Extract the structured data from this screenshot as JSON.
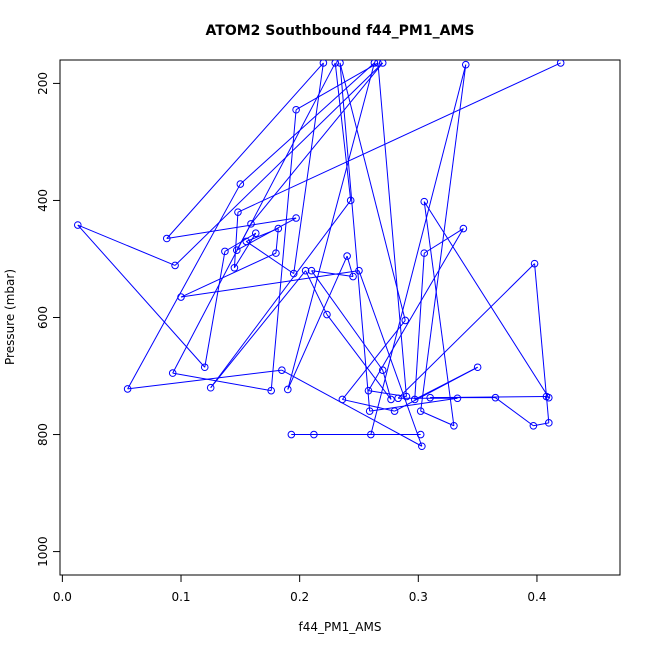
{
  "chart_data": {
    "type": "line",
    "title": "ATOM2 Southbound f44_PM1_AMS",
    "xlabel": "f44_PM1_AMS",
    "ylabel": "Pressure (mbar)",
    "xlim": [
      -0.002,
      0.47
    ],
    "ylim": [
      1040,
      160
    ],
    "y_inverted": true,
    "x_ticks": [
      0.0,
      0.1,
      0.2,
      0.3,
      0.4
    ],
    "x_tick_labels": [
      "0.0",
      "0.1",
      "0.2",
      "0.3",
      "0.4"
    ],
    "y_ticks": [
      200,
      400,
      600,
      800,
      1000
    ],
    "y_tick_labels": [
      "200",
      "400",
      "600",
      "800",
      "1000"
    ],
    "grid": false,
    "series_color": "#0000ff",
    "series": [
      {
        "style": "line-with-circles",
        "x": [
          0.42,
          0.148,
          0.145,
          0.163,
          0.137,
          0.12,
          0.013,
          0.095,
          0.27,
          0.159,
          0.147,
          0.197,
          0.088,
          0.22,
          0.195,
          0.155,
          0.182,
          0.18,
          0.1,
          0.25,
          0.303,
          0.185,
          0.055,
          0.15,
          0.263,
          0.19,
          0.24,
          0.245,
          0.21,
          0.27,
          0.277,
          0.223,
          0.205,
          0.125,
          0.243,
          0.23,
          0.093,
          0.176,
          0.197,
          0.266,
          0.29,
          0.258,
          0.338,
          0.305,
          0.297,
          0.35,
          0.28,
          0.236,
          0.289,
          0.234,
          0.259,
          0.333,
          0.283,
          0.398,
          0.41,
          0.397,
          0.365,
          0.31,
          0.408,
          0.41,
          0.305,
          0.33,
          0.302,
          0.34,
          0.26,
          0.212,
          0.193,
          0.302
        ],
        "y": [
          165,
          420,
          515,
          456,
          487,
          685,
          442,
          511,
          165,
          440,
          485,
          430,
          465,
          165,
          525,
          470,
          448,
          490,
          565,
          520,
          820,
          690,
          722,
          372,
          165,
          723,
          495,
          530,
          520,
          690,
          740,
          595,
          520,
          720,
          400,
          165,
          695,
          725,
          245,
          165,
          735,
          725,
          448,
          490,
          740,
          685,
          760,
          740,
          605,
          165,
          760,
          738,
          738,
          508,
          780,
          785,
          737,
          737,
          735,
          737,
          402,
          785,
          760,
          168,
          800,
          800,
          800,
          800
        ]
      }
    ]
  }
}
